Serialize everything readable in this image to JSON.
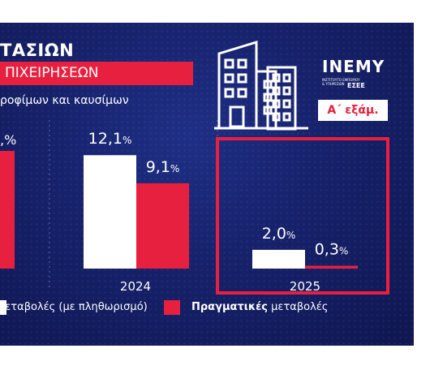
{
  "header": {
    "title_line1": "ΤΑΣΙΩΝ",
    "title_line2": "ΠΙΧΕΙΡΗΣΕΩΝ",
    "subtitle": "ροφίμων και καυσίμων",
    "logo_name": "INEMY",
    "logo_subtitle": "ΙΝΣΤΙΤΟΥΤΟ ΕΜΠΟΡΙΟΥ & ΥΠΗΡΕΣΙΩΝ",
    "logo_org": "ΕΣΕΕ",
    "period_badge": "Α΄ εξάμ."
  },
  "colors": {
    "background": "#16216a",
    "nominal": "#ffffff",
    "real": "#e8203f",
    "highlight_box": "#e8203f"
  },
  "chart_data": {
    "type": "bar",
    "categories": [
      "",
      "2024",
      "2025"
    ],
    "series": [
      {
        "name": "μεταβολές (με πληθωρισμό)",
        "values": [
          null,
          12.1,
          2.0
        ]
      },
      {
        "name": "Πραγματικές μεταβολές",
        "values": [
          null,
          9.1,
          0.3
        ]
      }
    ],
    "value_labels": [
      [
        "",
        "12,1",
        "2,0"
      ],
      [
        "",
        "9,1",
        "0,3"
      ]
    ],
    "partial_label": ",%",
    "unit": "%",
    "highlight_category": "2025"
  },
  "legend": {
    "nominal_label": "μεταβολές (με πληθωρισμό)",
    "real_label_bold": "Πραγματικές",
    "real_label_rest": " μεταβολές"
  }
}
